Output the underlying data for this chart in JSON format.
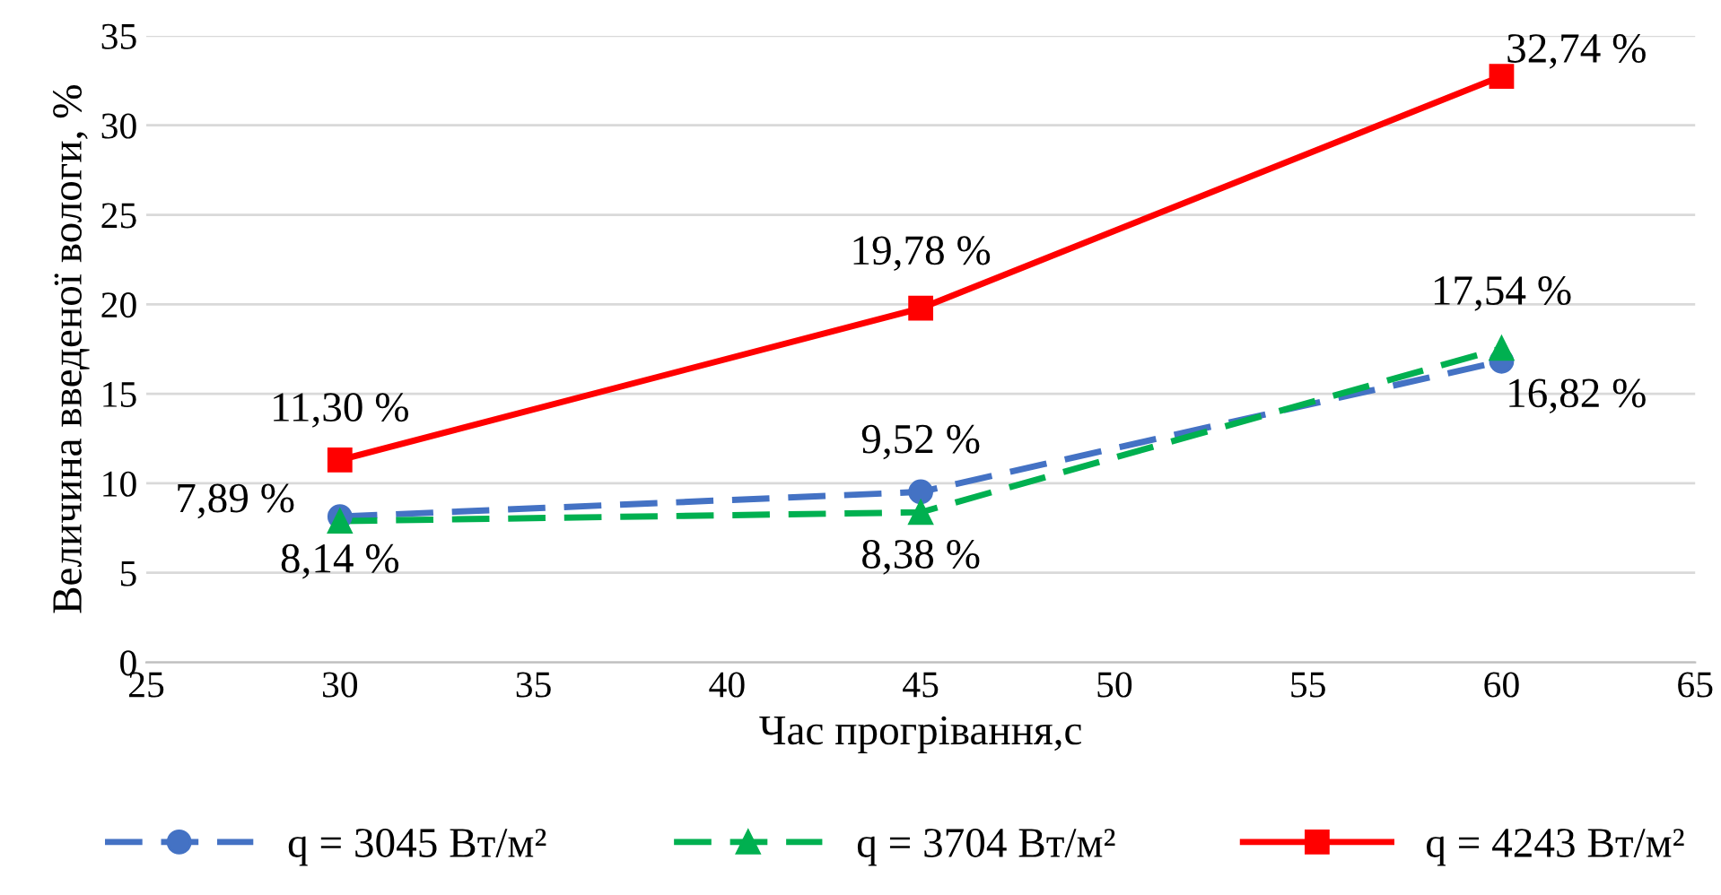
{
  "chart_data": {
    "type": "line",
    "xlabel": "Час прогрівання,с",
    "ylabel": "Величина введеної вологи, %",
    "x": [
      30,
      45,
      60
    ],
    "xlim": [
      25,
      65
    ],
    "xticks": [
      25,
      30,
      35,
      40,
      45,
      50,
      55,
      60,
      65
    ],
    "ylim": [
      0,
      35
    ],
    "yticks": [
      0,
      5,
      10,
      15,
      20,
      25,
      30,
      35
    ],
    "grid": "y",
    "legend": "bottom",
    "series": [
      {
        "name": "q = 3045 Вт/м²",
        "color": "#4472c4",
        "values": [
          8.14,
          9.52,
          16.82
        ],
        "value_labels": [
          "8,14 %",
          "9,52 %",
          "16,82 %"
        ],
        "marker": "circle",
        "line_style": "dashed"
      },
      {
        "name": "q = 3704 Вт/м²",
        "color": "#00b050",
        "values": [
          7.89,
          8.38,
          17.54
        ],
        "value_labels": [
          "7,89 %",
          "8,38 %",
          "17,54 %"
        ],
        "marker": "triangle",
        "line_style": "dashed"
      },
      {
        "name": "q = 4243 Вт/м²",
        "color": "#ff0000",
        "values": [
          11.3,
          19.78,
          32.74
        ],
        "value_labels": [
          "11,30 %",
          "19,78 %",
          "32,74 %"
        ],
        "marker": "square",
        "line_style": "solid"
      }
    ]
  }
}
